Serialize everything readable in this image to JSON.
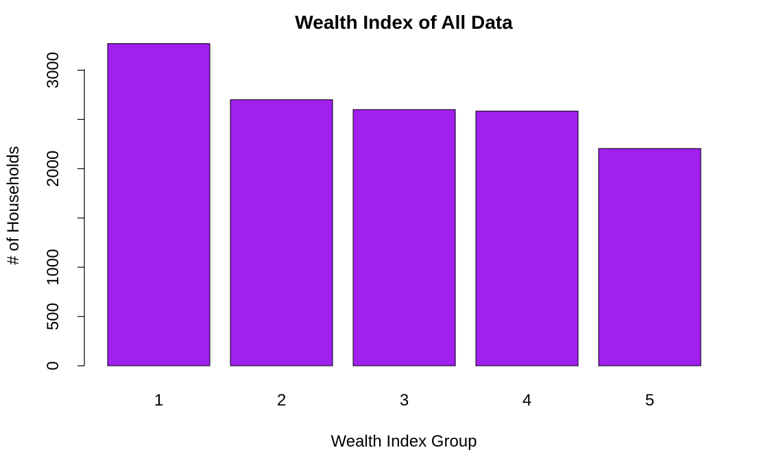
{
  "chart_data": {
    "type": "bar",
    "title": "Wealth Index of All Data",
    "xlabel": "Wealth Index Group",
    "ylabel": "# of Households",
    "categories": [
      "1",
      "2",
      "3",
      "4",
      "5"
    ],
    "values": [
      3270,
      2700,
      2600,
      2585,
      2205
    ],
    "ylim": [
      0,
      3270
    ],
    "y_ticks": [
      0,
      500,
      1000,
      1500,
      2000,
      2500,
      3000
    ],
    "y_tick_labels": [
      "0",
      "500",
      "1000",
      "",
      "2000",
      "",
      "3000"
    ],
    "bar_color": "#a020f0",
    "grid": false,
    "legend": "none"
  }
}
